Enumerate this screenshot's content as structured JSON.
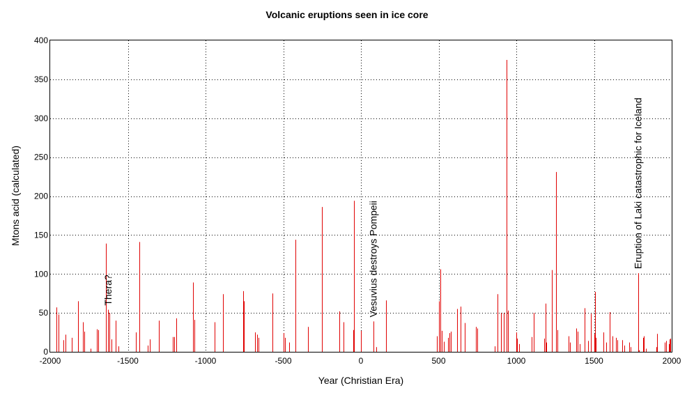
{
  "chart_data": {
    "type": "bar",
    "title": "Volcanic eruptions seen in ice core",
    "xlabel": "Year (Christian Era)",
    "ylabel": "Mtons acid (calculated)",
    "xlim": [
      -2000,
      2000
    ],
    "ylim": [
      0,
      400
    ],
    "xticks": [
      -2000,
      -1500,
      -1000,
      -500,
      0,
      500,
      1000,
      1500,
      2000
    ],
    "yticks": [
      0,
      50,
      100,
      150,
      200,
      250,
      300,
      350,
      400
    ],
    "grid": true,
    "bar_color": "#e00000",
    "annotations": [
      {
        "text": "Thera?",
        "x": -1628
      },
      {
        "text": "Vesuvius destroys Pompeii",
        "x": 79
      },
      {
        "text": "Eruption of Laki catastrophic for Iceland",
        "x": 1783
      }
    ],
    "x": [
      -1960,
      -1945,
      -1915,
      -1900,
      -1860,
      -1820,
      -1790,
      -1780,
      -1740,
      -1700,
      -1690,
      -1640,
      -1628,
      -1617,
      -1605,
      -1580,
      -1560,
      -1450,
      -1428,
      -1370,
      -1360,
      -1300,
      -1210,
      -1200,
      -1190,
      -1080,
      -1070,
      -940,
      -890,
      -760,
      -755,
      -680,
      -670,
      -660,
      -570,
      -500,
      -490,
      -460,
      -420,
      -340,
      -250,
      -140,
      -110,
      -50,
      -45,
      0,
      79,
      100,
      160,
      490,
      500,
      510,
      520,
      535,
      560,
      570,
      580,
      620,
      640,
      670,
      740,
      750,
      860,
      880,
      900,
      920,
      935,
      945,
      1000,
      1005,
      1020,
      1100,
      1110,
      1180,
      1190,
      1195,
      1230,
      1255,
      1265,
      1335,
      1345,
      1385,
      1395,
      1410,
      1440,
      1460,
      1480,
      1500,
      1505,
      1510,
      1560,
      1580,
      1600,
      1620,
      1640,
      1650,
      1680,
      1695,
      1725,
      1735,
      1783,
      1790,
      1815,
      1820,
      1835,
      1900,
      1905,
      1955,
      1965,
      1980,
      1985,
      1990
    ],
    "values": [
      57,
      48,
      15,
      22,
      18,
      65,
      38,
      26,
      4,
      29,
      28,
      139,
      54,
      50,
      16,
      40,
      7,
      25,
      141,
      8,
      16,
      40,
      19,
      19,
      43,
      89,
      41,
      38,
      74,
      78,
      65,
      25,
      22,
      18,
      75,
      24,
      18,
      12,
      144,
      32,
      186,
      52,
      38,
      28,
      194,
      27,
      39,
      6,
      66,
      20,
      65,
      106,
      27,
      13,
      18,
      24,
      26,
      55,
      58,
      37,
      32,
      30,
      7,
      74,
      50,
      50,
      375,
      53,
      25,
      17,
      10,
      19,
      50,
      17,
      62,
      12,
      105,
      231,
      28,
      20,
      12,
      30,
      26,
      10,
      56,
      14,
      49,
      23,
      77,
      18,
      25,
      12,
      51,
      20,
      18,
      15,
      15,
      8,
      12,
      6,
      101,
      2,
      18,
      20,
      4,
      6,
      23,
      12,
      14,
      10,
      16,
      17
    ]
  }
}
